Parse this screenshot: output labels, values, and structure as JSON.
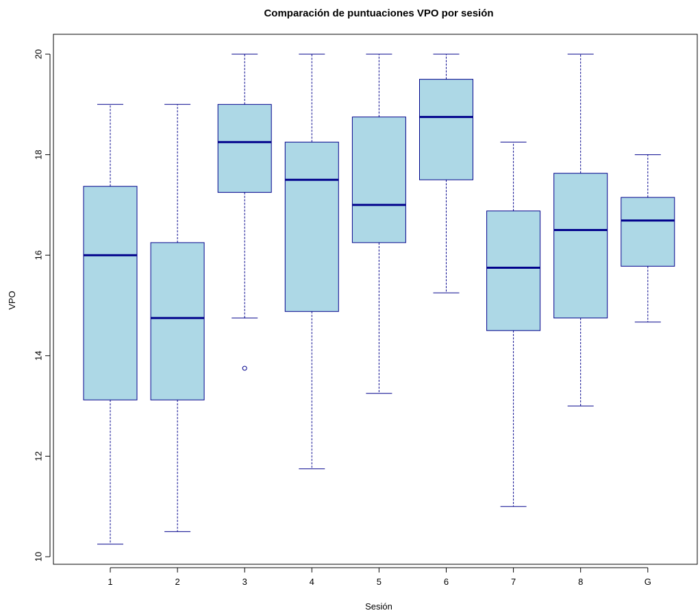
{
  "chart_data": {
    "type": "boxplot",
    "title": "Comparación de puntuaciones VPO por sesión",
    "xlabel": "Sesión",
    "ylabel": "VPO",
    "ylim": [
      9.9,
      20.4
    ],
    "yticks": [
      10,
      12,
      14,
      16,
      18,
      20
    ],
    "categories": [
      "1",
      "2",
      "3",
      "4",
      "5",
      "6",
      "7",
      "8",
      "G"
    ],
    "boxes": [
      {
        "category": "1",
        "min": 10.25,
        "q1": 13.12,
        "median": 16.0,
        "q3": 17.37,
        "max": 19.0,
        "outliers": []
      },
      {
        "category": "2",
        "min": 10.5,
        "q1": 13.12,
        "median": 14.75,
        "q3": 16.25,
        "max": 19.0,
        "outliers": []
      },
      {
        "category": "3",
        "min": 14.75,
        "q1": 17.25,
        "median": 18.25,
        "q3": 19.0,
        "max": 20.0,
        "outliers": [
          13.75
        ]
      },
      {
        "category": "4",
        "min": 11.75,
        "q1": 14.88,
        "median": 17.5,
        "q3": 18.25,
        "max": 20.0,
        "outliers": []
      },
      {
        "category": "5",
        "min": 13.25,
        "q1": 16.25,
        "median": 17.0,
        "q3": 18.75,
        "max": 20.0,
        "outliers": []
      },
      {
        "category": "6",
        "min": 15.25,
        "q1": 17.5,
        "median": 18.75,
        "q3": 19.5,
        "max": 20.0,
        "outliers": []
      },
      {
        "category": "7",
        "min": 11.0,
        "q1": 14.5,
        "median": 15.75,
        "q3": 16.88,
        "max": 18.25,
        "outliers": []
      },
      {
        "category": "8",
        "min": 13.0,
        "q1": 14.75,
        "median": 16.5,
        "q3": 17.63,
        "max": 20.0,
        "outliers": []
      },
      {
        "category": "G",
        "min": 14.67,
        "q1": 15.78,
        "median": 16.69,
        "q3": 17.15,
        "max": 18.0,
        "outliers": []
      }
    ],
    "colors": {
      "box_fill": "#add8e6",
      "box_border": "#00008b",
      "median": "#00008b",
      "whisker": "#00008b"
    },
    "grid": false
  }
}
